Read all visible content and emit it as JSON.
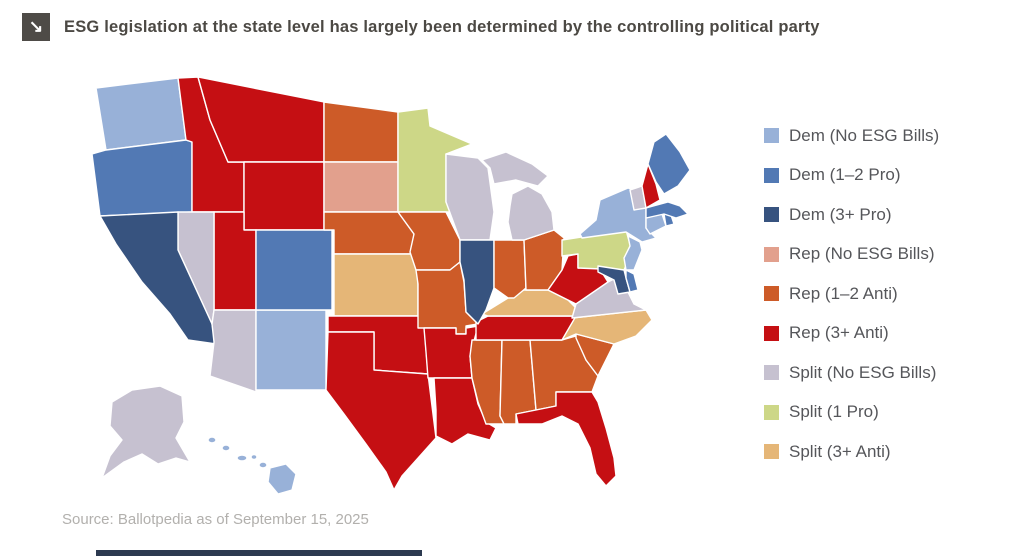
{
  "header": {
    "icon": "↘",
    "title": "ESG legislation at the state level has largely been determined by the controlling political party"
  },
  "source": "Source: Ballotpedia as of September 15, 2025",
  "chart_data": {
    "type": "choropleth",
    "title": "ESG legislation at the state level has largely been determined by the controlling political party",
    "legend_position": "right",
    "categories": [
      {
        "id": "dem_none",
        "label": "Dem (No ESG Bills)",
        "color": "#98b1d8"
      },
      {
        "id": "dem_pro12",
        "label": "Dem (1–2 Pro)",
        "color": "#5279b4"
      },
      {
        "id": "dem_pro3",
        "label": "Dem (3+ Pro)",
        "color": "#37537f"
      },
      {
        "id": "rep_none",
        "label": "Rep (No ESG Bills)",
        "color": "#e2a08d"
      },
      {
        "id": "rep_anti12",
        "label": "Rep (1–2 Anti)",
        "color": "#cd5b28"
      },
      {
        "id": "rep_anti3",
        "label": "Rep (3+ Anti)",
        "color": "#c50f13"
      },
      {
        "id": "split_none",
        "label": "Split (No ESG Bills)",
        "color": "#c6c1d0"
      },
      {
        "id": "split_pro1",
        "label": "Split (1 Pro)",
        "color": "#cdd787"
      },
      {
        "id": "split_anti3",
        "label": "Split (3+ Anti)",
        "color": "#e5b677"
      }
    ],
    "states": {
      "WA": "dem_none",
      "OR": "dem_pro12",
      "CA": "dem_pro3",
      "NV": "split_none",
      "ID": "rep_anti3",
      "MT": "rep_anti3",
      "WY": "rep_anti3",
      "UT": "rep_anti3",
      "CO": "dem_pro12",
      "AZ": "split_none",
      "NM": "dem_none",
      "ND": "rep_anti12",
      "SD": "rep_none",
      "NE": "rep_anti12",
      "KS": "split_anti3",
      "OK": "rep_anti3",
      "TX": "rep_anti3",
      "MN": "split_pro1",
      "IA": "rep_anti12",
      "MO": "rep_anti12",
      "AR": "rep_anti3",
      "LA": "rep_anti3",
      "WI": "split_none",
      "MI": "split_none",
      "IL": "dem_pro3",
      "IN": "rep_anti12",
      "OH": "rep_anti12",
      "KY": "split_anti3",
      "TN": "rep_anti3",
      "MS": "rep_anti12",
      "AL": "rep_anti12",
      "GA": "rep_anti12",
      "SC": "rep_anti12",
      "NC": "split_anti3",
      "FL": "rep_anti3",
      "WV": "rep_anti3",
      "VA": "split_none",
      "MD": "dem_pro3",
      "DE": "dem_pro12",
      "NJ": "dem_none",
      "PA": "split_pro1",
      "NY": "dem_none",
      "CT": "dem_none",
      "RI": "dem_pro12",
      "MA": "dem_pro12",
      "VT": "split_none",
      "NH": "rep_anti3",
      "ME": "dem_pro12",
      "AK": "split_none",
      "HI": "dem_none"
    }
  }
}
